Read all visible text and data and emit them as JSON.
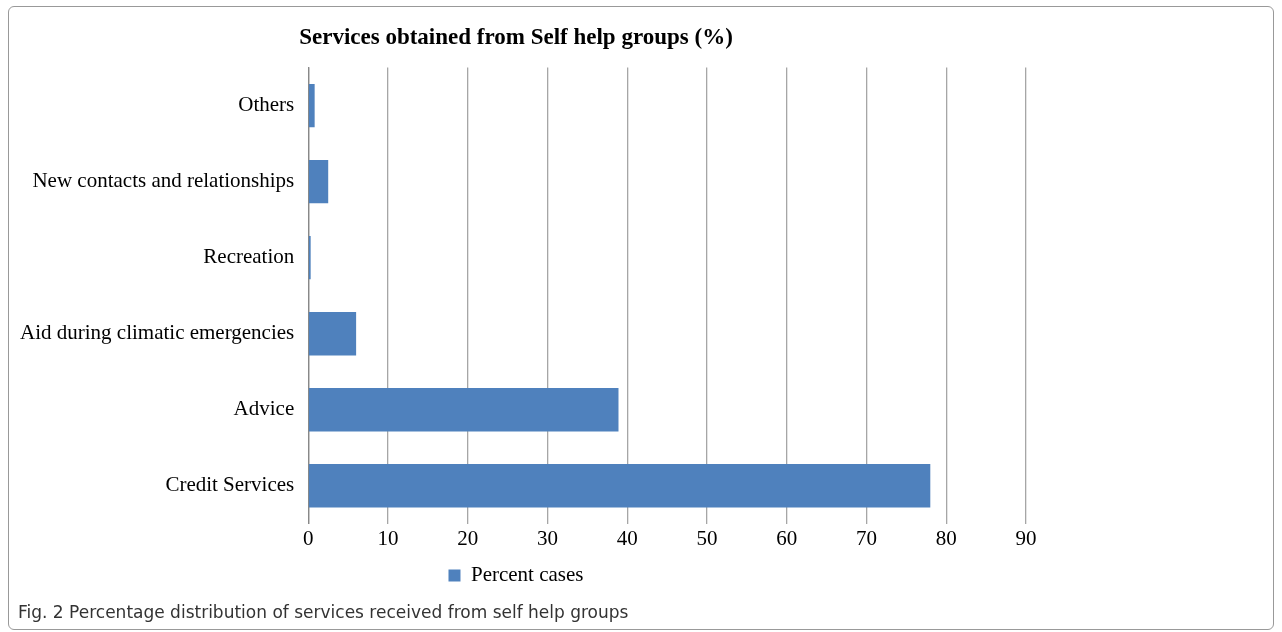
{
  "chart_data": {
    "type": "bar",
    "orientation": "horizontal",
    "title": "Services obtained from Self help groups (%)",
    "categories": [
      "Others",
      "New contacts and relationships",
      "Recreation",
      "Aid during climatic emergencies",
      "Advice",
      "Credit Services"
    ],
    "series": [
      {
        "name": "Percent cases",
        "color": "#4f81bd",
        "values": [
          0.8,
          2.5,
          0.3,
          6.0,
          38.9,
          78.0
        ]
      }
    ],
    "xlim": [
      0,
      90
    ],
    "xticks": [
      0,
      10,
      20,
      30,
      40,
      50,
      60,
      70,
      80,
      90
    ],
    "grid": "x",
    "legend": "bottom",
    "annotations": [
      "Fig. 2 Percentage distribution of services received from self help groups"
    ]
  }
}
